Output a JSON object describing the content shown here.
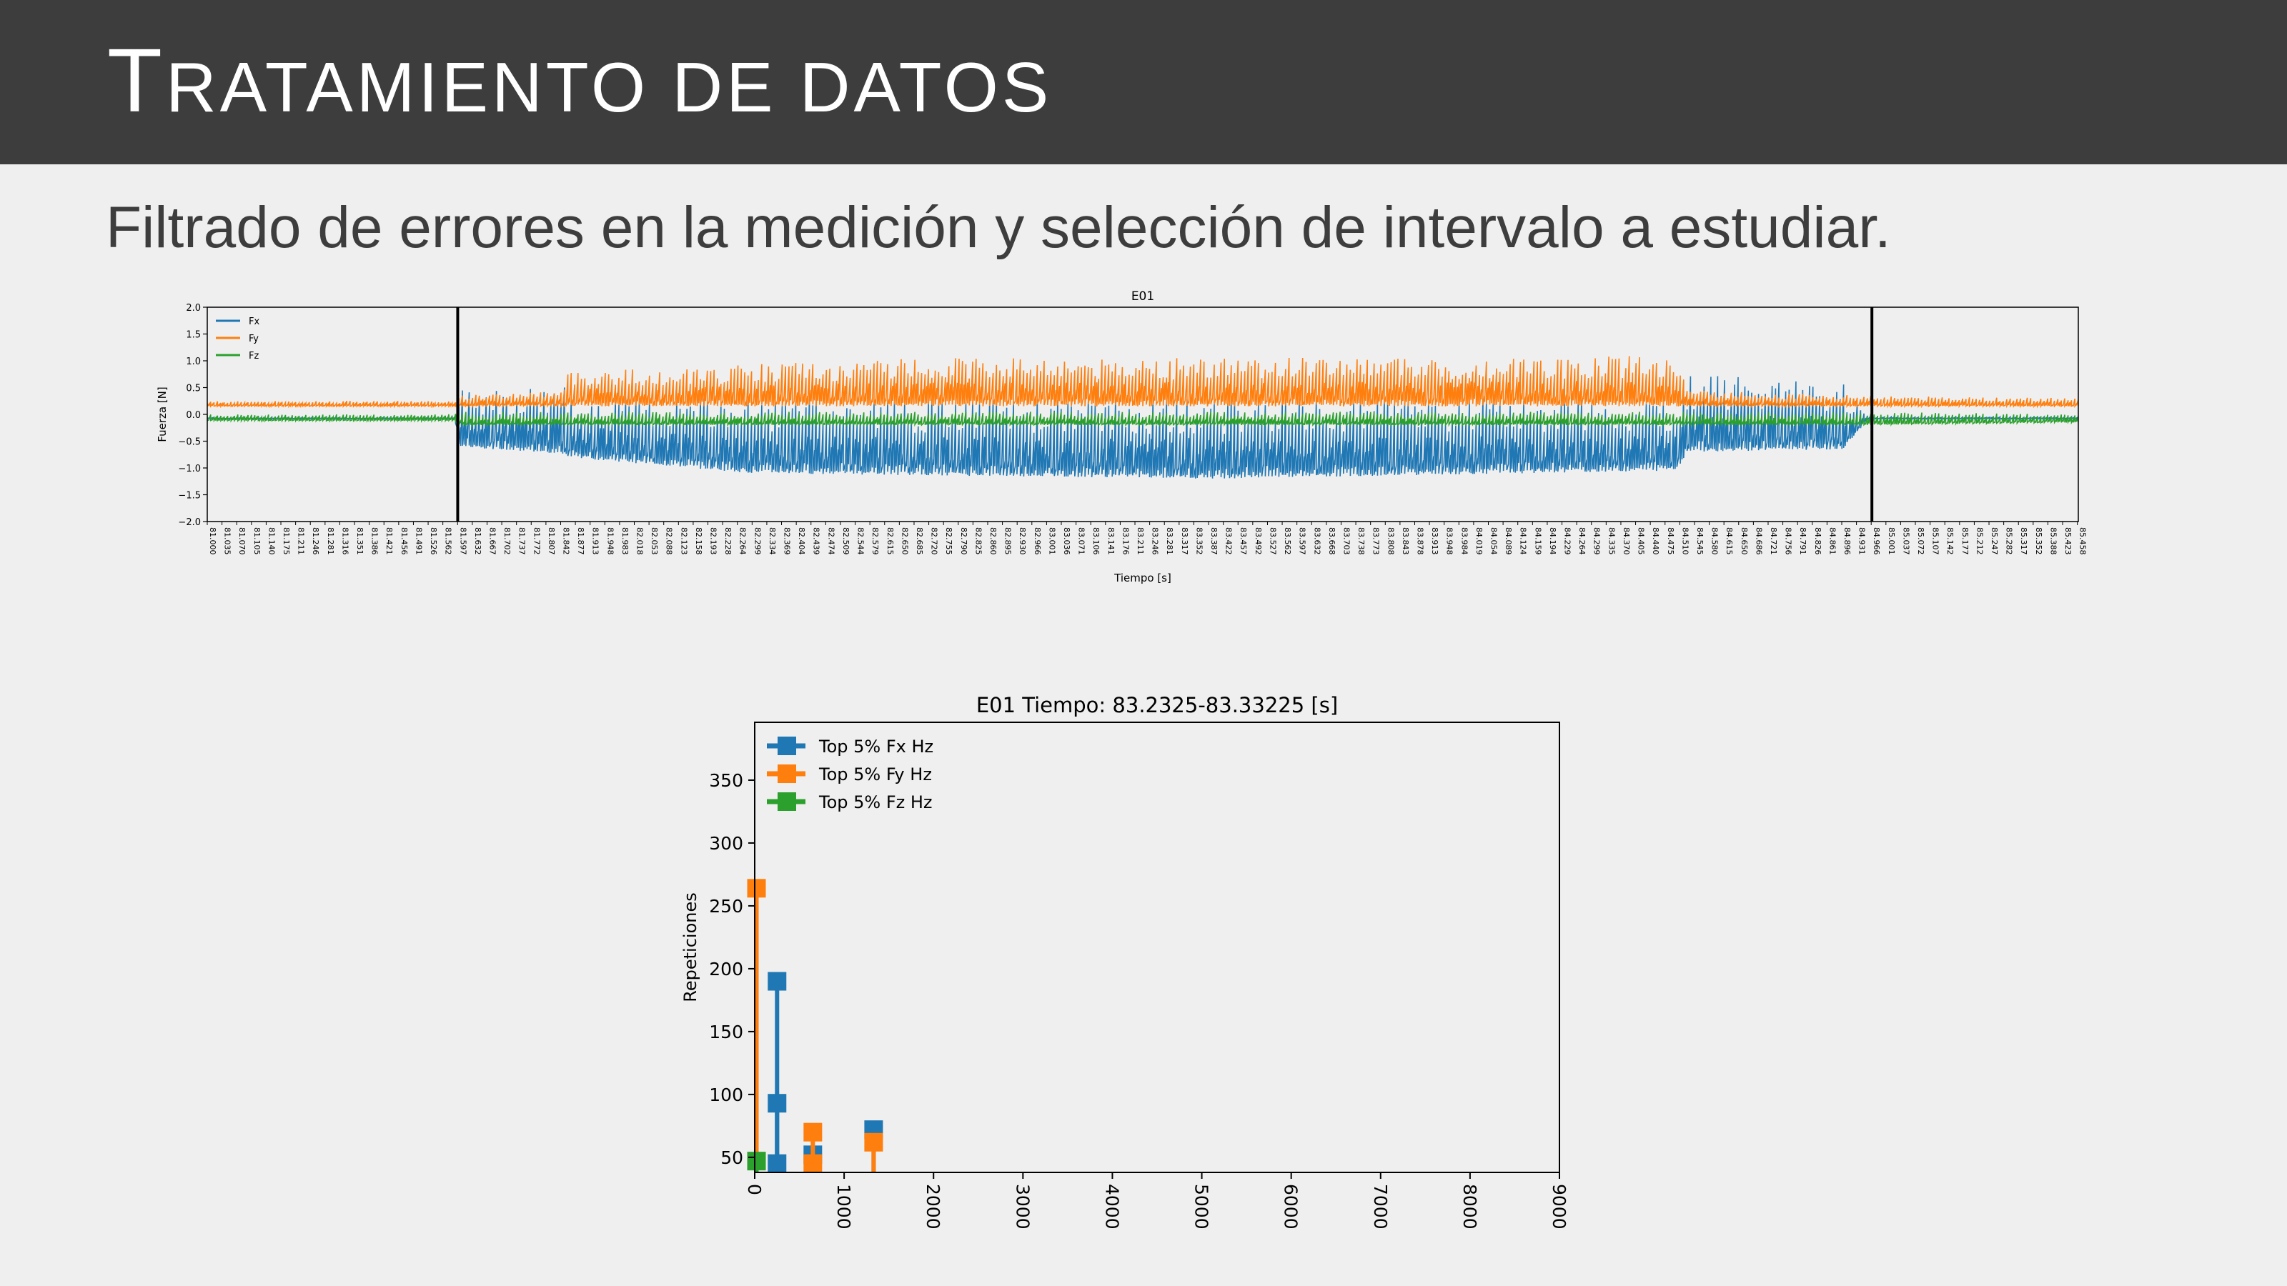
{
  "header": {
    "title_first": "T",
    "title_rest": "RATAMIENTO DE DATOS"
  },
  "subtitle": "Filtrado de errores en la medición y selección de intervalo a estudiar.",
  "chart_data": [
    {
      "type": "line",
      "title": "E01",
      "xlabel": "Tiempo [s]",
      "ylabel": "Fuerza [N]",
      "xlim": [
        81.0,
        85.46
      ],
      "ylim": [
        -2.0,
        2.0
      ],
      "yticks": [
        -2.0,
        -1.5,
        -1.0,
        -0.5,
        0.0,
        0.5,
        1.0,
        1.5,
        2.0
      ],
      "xtick_start": 81.0,
      "xtick_step": 0.0351,
      "xtick_count": 128,
      "legend_position": "top-left",
      "selection_lines_x": [
        81.597,
        84.968
      ],
      "series": [
        {
          "name": "Fx",
          "color": "#1f77b4",
          "envelope": [
            {
              "x": 81.0,
              "min": -0.08,
              "max": -0.05
            },
            {
              "x": 81.59,
              "min": -0.08,
              "max": -0.05
            },
            {
              "x": 81.6,
              "min": -0.6,
              "max": 0.5
            },
            {
              "x": 81.85,
              "min": -0.75,
              "max": 0.55
            },
            {
              "x": 81.86,
              "min": -0.8,
              "max": 0.35
            },
            {
              "x": 82.3,
              "min": -1.1,
              "max": 0.3
            },
            {
              "x": 83.4,
              "min": -1.2,
              "max": 0.3
            },
            {
              "x": 84.5,
              "min": -1.05,
              "max": 0.3
            },
            {
              "x": 84.53,
              "min": -0.7,
              "max": 0.75
            },
            {
              "x": 84.9,
              "min": -0.65,
              "max": 0.6
            },
            {
              "x": 84.96,
              "min": -0.08,
              "max": -0.04
            },
            {
              "x": 85.46,
              "min": -0.08,
              "max": -0.04
            }
          ]
        },
        {
          "name": "Fy",
          "color": "#ff7f0e",
          "envelope": [
            {
              "x": 81.0,
              "min": 0.15,
              "max": 0.25
            },
            {
              "x": 81.59,
              "min": 0.15,
              "max": 0.25
            },
            {
              "x": 81.6,
              "min": 0.15,
              "max": 0.35
            },
            {
              "x": 81.85,
              "min": 0.15,
              "max": 0.45
            },
            {
              "x": 81.86,
              "min": 0.15,
              "max": 0.8
            },
            {
              "x": 82.7,
              "min": 0.15,
              "max": 1.05
            },
            {
              "x": 83.5,
              "min": 0.15,
              "max": 1.05
            },
            {
              "x": 84.5,
              "min": 0.15,
              "max": 1.1
            },
            {
              "x": 84.53,
              "min": 0.15,
              "max": 0.45
            },
            {
              "x": 84.96,
              "min": 0.15,
              "max": 0.35
            },
            {
              "x": 85.46,
              "min": 0.15,
              "max": 0.3
            }
          ]
        },
        {
          "name": "Fz",
          "color": "#2ca02c",
          "envelope": [
            {
              "x": 81.0,
              "min": -0.12,
              "max": 0.0
            },
            {
              "x": 81.59,
              "min": -0.12,
              "max": 0.0
            },
            {
              "x": 81.6,
              "min": -0.2,
              "max": 0.05
            },
            {
              "x": 84.96,
              "min": -0.2,
              "max": 0.05
            },
            {
              "x": 85.46,
              "min": -0.15,
              "max": 0.0
            }
          ]
        }
      ]
    },
    {
      "type": "bar",
      "title": "E01 Tiempo: 83.2325-83.33225 [s]",
      "xlabel": "",
      "ylabel": "Repeticiones",
      "xlim": [
        0,
        9000
      ],
      "ylim": [
        38,
        396
      ],
      "xticks": [
        0,
        1000,
        2000,
        3000,
        4000,
        5000,
        6000,
        7000,
        8000,
        9000
      ],
      "yticks": [
        50,
        100,
        150,
        200,
        250,
        300,
        350
      ],
      "legend_position": "top-left",
      "series": [
        {
          "name": "Top 5% Fx Hz",
          "color": "#1f77b4",
          "points": [
            {
              "x": 250,
              "y": 190
            },
            {
              "x": 250,
              "y": 93
            },
            {
              "x": 250,
              "y": 45
            },
            {
              "x": 650,
              "y": 52
            },
            {
              "x": 1330,
              "y": 72
            }
          ]
        },
        {
          "name": "Top 5% Fy Hz",
          "color": "#ff7f0e",
          "points": [
            {
              "x": 20,
              "y": 264
            },
            {
              "x": 650,
              "y": 70
            },
            {
              "x": 650,
              "y": 45
            },
            {
              "x": 1330,
              "y": 62
            }
          ]
        },
        {
          "name": "Top 5% Fz Hz",
          "color": "#2ca02c",
          "points": [
            {
              "x": 20,
              "y": 47
            }
          ]
        }
      ]
    }
  ]
}
